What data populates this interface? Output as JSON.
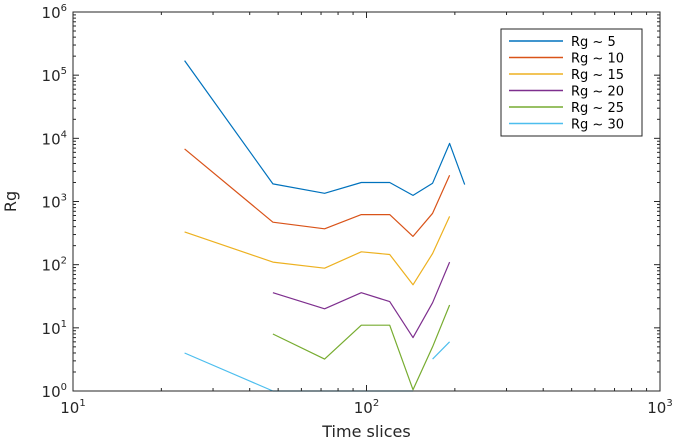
{
  "chart_data": {
    "type": "line",
    "title": "",
    "xlabel": "Time slices",
    "ylabel": "Rg",
    "xscale": "log",
    "yscale": "log",
    "xlim": [
      10,
      1000
    ],
    "ylim": [
      1,
      1000000
    ],
    "x_ticks": [
      {
        "base": "10",
        "exp": "1"
      },
      {
        "base": "10",
        "exp": "2"
      },
      {
        "base": "10",
        "exp": "3"
      }
    ],
    "y_ticks": [
      {
        "base": "10",
        "exp": "0"
      },
      {
        "base": "10",
        "exp": "1"
      },
      {
        "base": "10",
        "exp": "2"
      },
      {
        "base": "10",
        "exp": "3"
      },
      {
        "base": "10",
        "exp": "4"
      },
      {
        "base": "10",
        "exp": "5"
      },
      {
        "base": "10",
        "exp": "6"
      }
    ],
    "grid": false,
    "legend_position": "top-right",
    "series": [
      {
        "name": "Rg ~ 5",
        "color": "#0072BD",
        "points": [
          [
            24,
            170000
          ],
          [
            48,
            1900
          ],
          [
            72,
            1350
          ],
          [
            96,
            2000
          ],
          [
            120,
            2000
          ],
          [
            144,
            1250
          ],
          [
            168,
            1950
          ],
          [
            192,
            8300
          ],
          [
            216,
            1850
          ]
        ]
      },
      {
        "name": "Rg ~ 10",
        "color": "#D95319",
        "points": [
          [
            24,
            6800
          ],
          [
            48,
            470
          ],
          [
            72,
            370
          ],
          [
            96,
            620
          ],
          [
            120,
            620
          ],
          [
            144,
            280
          ],
          [
            168,
            650
          ],
          [
            192,
            2600
          ]
        ]
      },
      {
        "name": "Rg ~ 15",
        "color": "#EDB120",
        "points": [
          [
            24,
            330
          ],
          [
            48,
            110
          ],
          [
            72,
            88
          ],
          [
            96,
            160
          ],
          [
            120,
            145
          ],
          [
            144,
            48
          ],
          [
            168,
            150
          ],
          [
            192,
            580
          ]
        ]
      },
      {
        "name": "Rg ~ 20",
        "color": "#7E2F8E",
        "points": [
          [
            48,
            36
          ],
          [
            72,
            20
          ],
          [
            96,
            36
          ],
          [
            120,
            26
          ],
          [
            144,
            7
          ],
          [
            168,
            25
          ],
          [
            192,
            110
          ]
        ]
      },
      {
        "name": "Rg ~ 25",
        "color": "#77AC30",
        "points": [
          [
            48,
            8
          ],
          [
            72,
            3.2
          ],
          [
            96,
            11
          ],
          [
            120,
            11
          ],
          [
            144,
            1.05
          ],
          [
            168,
            5
          ],
          [
            192,
            23
          ]
        ]
      },
      {
        "name": "Rg ~ 30",
        "color": "#4DBEEE",
        "segments": [
          [
            [
              24,
              4
            ],
            [
              48,
              1
            ],
            [
              72,
              1
            ],
            [
              96,
              1
            ],
            [
              120,
              1
            ],
            [
              144,
              1
            ]
          ],
          [
            [
              168,
              3.2
            ],
            [
              192,
              6
            ]
          ]
        ]
      }
    ]
  }
}
